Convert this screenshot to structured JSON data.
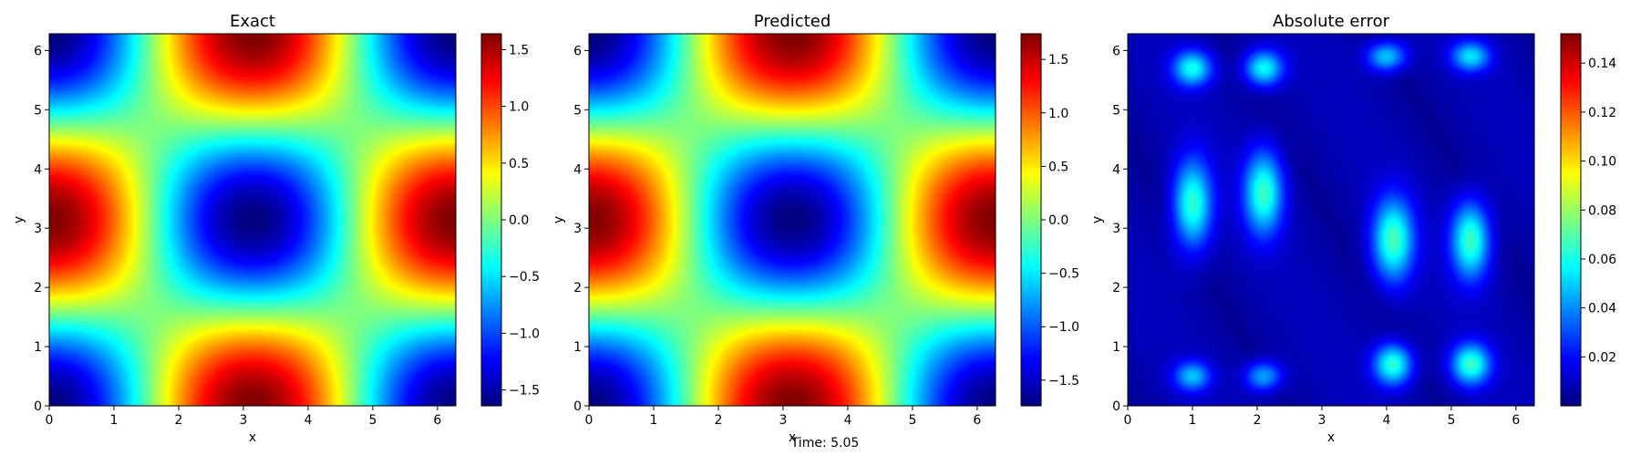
{
  "figure": {
    "footer_text": "Time: 5.05"
  },
  "chart_data": [
    {
      "type": "heatmap",
      "title": "Exact",
      "xlabel": "x",
      "ylabel": "y",
      "xlim": [
        0,
        6.2832
      ],
      "ylim": [
        0,
        6.2832
      ],
      "xticks": [
        0,
        1,
        2,
        3,
        4,
        5,
        6
      ],
      "yticks": [
        0,
        1,
        2,
        3,
        4,
        5,
        6
      ],
      "field": "-1.64*cos(x)*cos(y)",
      "colormap": "jet",
      "colorbar": {
        "min": -1.64,
        "max": 1.64,
        "ticks": [
          -1.5,
          -1.0,
          -0.5,
          0.0,
          0.5,
          1.0,
          1.5
        ],
        "tick_labels": [
          "−1.5",
          "−1.0",
          "−0.5",
          "0.0",
          "0.5",
          "1.0",
          "1.5"
        ]
      }
    },
    {
      "type": "heatmap",
      "title": "Predicted",
      "xlabel": "x",
      "ylabel": "y",
      "xlim": [
        0,
        6.2832
      ],
      "ylim": [
        0,
        6.2832
      ],
      "xticks": [
        0,
        1,
        2,
        3,
        4,
        5,
        6
      ],
      "yticks": [
        0,
        1,
        2,
        3,
        4,
        5,
        6
      ],
      "field": "-1.74*cos(x)*cos(y)",
      "colormap": "jet",
      "colorbar": {
        "min": -1.74,
        "max": 1.74,
        "ticks": [
          -1.5,
          -1.0,
          -0.5,
          0.0,
          0.5,
          1.0,
          1.5
        ],
        "tick_labels": [
          "−1.5",
          "−1.0",
          "−0.5",
          "0.0",
          "0.5",
          "1.0",
          "1.5"
        ]
      }
    },
    {
      "type": "heatmap",
      "title": "Absolute error",
      "xlabel": "x",
      "ylabel": "y",
      "xlim": [
        0,
        6.2832
      ],
      "ylim": [
        0,
        6.2832
      ],
      "xticks": [
        0,
        1,
        2,
        3,
        4,
        5,
        6
      ],
      "yticks": [
        0,
        1,
        2,
        3,
        4,
        5,
        6
      ],
      "field": "error blobs",
      "colormap": "jet",
      "blobs": [
        {
          "x": 1.0,
          "y": 3.4,
          "sx": 0.3,
          "sy": 0.75,
          "v": 0.058
        },
        {
          "x": 2.1,
          "y": 3.6,
          "sx": 0.3,
          "sy": 0.7,
          "v": 0.058
        },
        {
          "x": 4.1,
          "y": 2.8,
          "sx": 0.32,
          "sy": 0.7,
          "v": 0.06
        },
        {
          "x": 5.3,
          "y": 2.8,
          "sx": 0.3,
          "sy": 0.65,
          "v": 0.06
        },
        {
          "x": 1.0,
          "y": 5.7,
          "sx": 0.3,
          "sy": 0.3,
          "v": 0.052
        },
        {
          "x": 2.1,
          "y": 5.7,
          "sx": 0.3,
          "sy": 0.3,
          "v": 0.052
        },
        {
          "x": 4.0,
          "y": 5.9,
          "sx": 0.3,
          "sy": 0.25,
          "v": 0.045
        },
        {
          "x": 5.3,
          "y": 5.9,
          "sx": 0.3,
          "sy": 0.25,
          "v": 0.045
        },
        {
          "x": 1.0,
          "y": 0.5,
          "sx": 0.28,
          "sy": 0.25,
          "v": 0.04
        },
        {
          "x": 2.1,
          "y": 0.5,
          "sx": 0.28,
          "sy": 0.25,
          "v": 0.04
        },
        {
          "x": 4.1,
          "y": 0.7,
          "sx": 0.3,
          "sy": 0.35,
          "v": 0.058
        },
        {
          "x": 5.3,
          "y": 0.7,
          "sx": 0.3,
          "sy": 0.35,
          "v": 0.058
        }
      ],
      "colorbar": {
        "min": 0.0,
        "max": 0.152,
        "ticks": [
          0.02,
          0.04,
          0.06,
          0.08,
          0.1,
          0.12,
          0.14
        ],
        "tick_labels": [
          "0.02",
          "0.04",
          "0.06",
          "0.08",
          "0.10",
          "0.12",
          "0.14"
        ]
      }
    }
  ]
}
